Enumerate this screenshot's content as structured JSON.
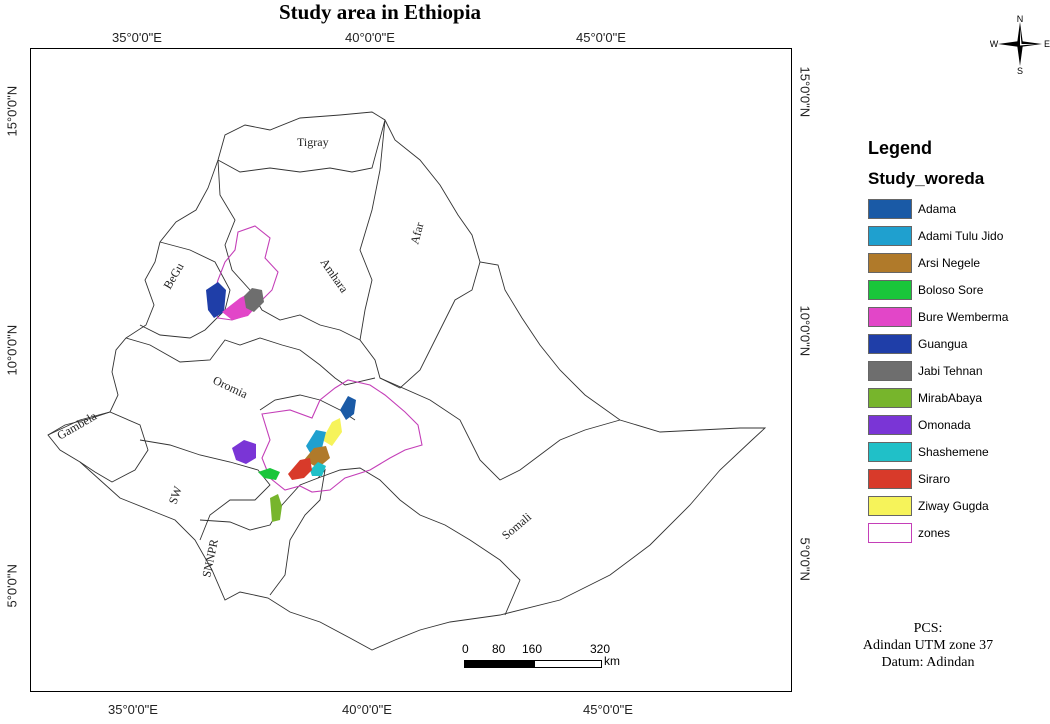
{
  "title": "Study area in Ethiopia",
  "graticule": {
    "top": [
      "35°0'0\"E",
      "40°0'0\"E",
      "45°0'0\"E"
    ],
    "bottom": [
      "35°0'0\"E",
      "40°0'0\"E",
      "45°0'0\"E"
    ],
    "left": [
      "15°0'0\"N",
      "10°0'0\"N",
      "5°0'0\"N"
    ],
    "right": [
      "15°0'0\"N",
      "10°0'0\"N",
      "5°0'0\"N"
    ]
  },
  "regions": [
    "Tigray",
    "Afar",
    "Amhara",
    "BeGu",
    "Oromia",
    "Gambela",
    "SW",
    "SNNPR",
    "Somali"
  ],
  "compass": {
    "n": "N",
    "s": "S",
    "e": "E",
    "w": "W"
  },
  "legend": {
    "title": "Legend",
    "subtitle": "Study_woreda",
    "items": [
      {
        "label": "Adama",
        "color": "#1a5aa6"
      },
      {
        "label": "Adami Tulu  Jido",
        "color": "#1fa0cf"
      },
      {
        "label": "Arsi Negele",
        "color": "#b07a2a"
      },
      {
        "label": "Boloso Sore",
        "color": "#19c63a"
      },
      {
        "label": "Bure Wemberma",
        "color": "#e246c8"
      },
      {
        "label": "Guangua",
        "color": "#1f3ea8"
      },
      {
        "label": "Jabi Tehnan",
        "color": "#6e6e6e"
      },
      {
        "label": "MirabAbaya",
        "color": "#77b52c"
      },
      {
        "label": "Omonada",
        "color": "#7a35d6"
      },
      {
        "label": "Shashemene",
        "color": "#20c0c8"
      },
      {
        "label": "Siraro",
        "color": "#d83a2a"
      },
      {
        "label": "Ziway Gugda",
        "color": "#f6f35a"
      },
      {
        "label": "zones",
        "color": "#ffffff",
        "outline": "#c43fb8"
      }
    ]
  },
  "projection": {
    "line1": "PCS:",
    "line2": "Adindan UTM zone 37",
    "line3": "Datum: Adindan"
  },
  "scalebar": {
    "labels": [
      "0",
      "80",
      "160",
      "320"
    ],
    "unit": "km"
  }
}
